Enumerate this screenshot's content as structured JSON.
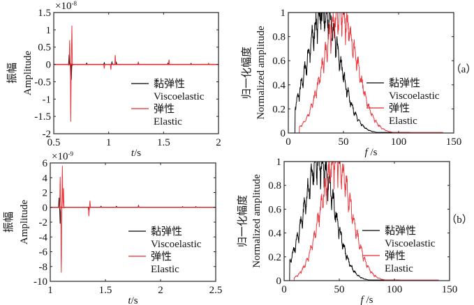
{
  "chart_data": [
    {
      "id": "a-time",
      "type": "line",
      "panel": "(a)",
      "title": "",
      "xlabel": "t/s",
      "ylabel_cn": "振幅",
      "ylabel": "Amplitude",
      "y_exponent_label": "×10",
      "y_exponent": "-8",
      "xlim": [
        0.5,
        2
      ],
      "ylim": [
        -2,
        1.5
      ],
      "xticks": [
        0.5,
        1,
        1.5,
        2
      ],
      "xtick_labels": [
        "0.5",
        "1",
        "1.5",
        "2"
      ],
      "yticks": [
        -2,
        -1.5,
        -1,
        -0.5,
        0,
        0.5,
        1,
        1.5
      ],
      "ytick_labels": [
        "-2",
        "-1.5",
        "-1",
        "-0.5",
        "0",
        "0.5",
        "1",
        "1.5"
      ],
      "legend": {
        "placement": "lower-right",
        "entries": [
          {
            "name_cn": "黏弹性",
            "name": "Viscoelastic",
            "color": "#000000"
          },
          {
            "name_cn": "弹性",
            "name": "Elastic",
            "color": "#e8262b"
          }
        ]
      },
      "series": [
        {
          "name": "Viscoelastic",
          "color": "#000000",
          "events": [
            {
              "t": 0.64,
              "amp": 0.28
            },
            {
              "t": 0.66,
              "amp": -0.45
            },
            {
              "t": 0.8,
              "amp": 0.04
            },
            {
              "t": 0.96,
              "amp": 0.05
            },
            {
              "t": 1.03,
              "amp": 0.07
            },
            {
              "t": 1.07,
              "amp": 0.06
            },
            {
              "t": 1.27,
              "amp": 0.04
            },
            {
              "t": 1.54,
              "amp": 0.04
            },
            {
              "t": 1.75,
              "amp": 0.03
            },
            {
              "t": 1.91,
              "amp": 0.03
            }
          ]
        },
        {
          "name": "Elastic",
          "color": "#e8262b",
          "events": [
            {
              "t": 0.645,
              "amp": 0.7
            },
            {
              "t": 0.655,
              "amp": -1.65
            },
            {
              "t": 0.665,
              "amp": 1.12
            },
            {
              "t": 0.96,
              "amp": -0.12
            },
            {
              "t": 1.02,
              "amp": -0.15
            },
            {
              "t": 1.06,
              "amp": 0.27
            },
            {
              "t": 1.27,
              "amp": 0.08
            },
            {
              "t": 1.55,
              "amp": 0.14
            },
            {
              "t": 1.91,
              "amp": 0.03
            }
          ]
        }
      ]
    },
    {
      "id": "a-spectrum",
      "type": "line",
      "panel": "(a)",
      "xlabel": "f /s",
      "ylabel_cn": "归一化幅度",
      "ylabel": "Normalized amplitude",
      "xlim": [
        0,
        150
      ],
      "ylim": [
        0,
        1
      ],
      "xticks": [
        0,
        50,
        100,
        150
      ],
      "xtick_labels": [
        "0",
        "50",
        "100",
        "150"
      ],
      "yticks": [
        0,
        0.2,
        0.4,
        0.6,
        0.8,
        1
      ],
      "ytick_labels": [
        "0",
        "0.2",
        "0.4",
        "0.6",
        "0.8",
        "1"
      ],
      "legend": {
        "placement": "lower-right",
        "entries": [
          {
            "name_cn": "黏弹性",
            "name": "Viscoelastic",
            "color": "#000000"
          },
          {
            "name_cn": "弹性",
            "name": "Elastic",
            "color": "#e8262b"
          }
        ]
      },
      "series": [
        {
          "name": "Viscoelastic",
          "color": "#000000",
          "peak_f": 32,
          "width": 15,
          "start_f": 6,
          "end_f": 110,
          "max": 1.0,
          "max_at": 30
        },
        {
          "name": "Elastic",
          "color": "#e8262b",
          "peak_f": 47,
          "width": 15,
          "start_f": 10,
          "end_f": 140,
          "max": 1.0,
          "max_at": 50
        }
      ]
    },
    {
      "id": "b-time",
      "type": "line",
      "panel": "(b)",
      "xlabel": "t/s",
      "ylabel_cn": "振幅",
      "ylabel": "Amplitude",
      "y_exponent_label": "×10",
      "y_exponent": "-9",
      "xlim": [
        1,
        2.5
      ],
      "ylim": [
        -10,
        6
      ],
      "xticks": [
        1,
        1.5,
        2,
        2.5
      ],
      "xtick_labels": [
        "1",
        "1.5",
        "2",
        "2.5"
      ],
      "yticks": [
        -10,
        -8,
        -6,
        -4,
        -2,
        0,
        2,
        4,
        6
      ],
      "ytick_labels": [
        "-10",
        "-8",
        "-6",
        "-4",
        "-2",
        "0",
        "2",
        "4",
        "6"
      ],
      "legend": {
        "placement": "lower-right",
        "entries": [
          {
            "name_cn": "黏弹性",
            "name": "Viscoelastic",
            "color": "#000000"
          },
          {
            "name_cn": "弹性",
            "name": "Elastic",
            "color": "#e8262b"
          }
        ]
      },
      "series": [
        {
          "name": "Viscoelastic",
          "color": "#000000",
          "events": [
            {
              "t": 1.08,
              "amp": 1.3
            },
            {
              "t": 1.09,
              "amp": -2.2
            },
            {
              "t": 1.35,
              "amp": -0.4
            },
            {
              "t": 1.46,
              "amp": 0.15
            },
            {
              "t": 1.6,
              "amp": 0.15
            },
            {
              "t": 1.8,
              "amp": 0.25
            },
            {
              "t": 2.2,
              "amp": 0.1
            },
            {
              "t": 2.32,
              "amp": 0.1
            }
          ]
        },
        {
          "name": "Elastic",
          "color": "#e8262b",
          "events": [
            {
              "t": 1.09,
              "amp": 4.1
            },
            {
              "t": 1.1,
              "amp": -8.8
            },
            {
              "t": 1.11,
              "amp": 5.6
            },
            {
              "t": 1.12,
              "amp": 2.6
            },
            {
              "t": 1.35,
              "amp": -1.2
            },
            {
              "t": 1.36,
              "amp": 0.9
            },
            {
              "t": 1.8,
              "amp": 0.2
            }
          ]
        }
      ]
    },
    {
      "id": "b-spectrum",
      "type": "line",
      "panel": "(b)",
      "xlabel": "f /s",
      "ylabel_cn": "归一化幅度",
      "ylabel": "Normalized amplitude",
      "xlim": [
        0,
        150
      ],
      "ylim": [
        0,
        1
      ],
      "xticks": [
        0,
        50,
        100,
        150
      ],
      "xtick_labels": [
        "0",
        "50",
        "100",
        "150"
      ],
      "yticks": [
        0,
        0.2,
        0.4,
        0.6,
        0.8,
        1
      ],
      "ytick_labels": [
        "0",
        "0.2",
        "0.4",
        "0.6",
        "0.8",
        "1"
      ],
      "legend": {
        "placement": "lower-right",
        "entries": [
          {
            "name_cn": "黏弹性",
            "name": "Viscoelastic",
            "color": "#000000"
          },
          {
            "name_cn": "弹性",
            "name": "Elastic",
            "color": "#e8262b"
          }
        ]
      },
      "series": [
        {
          "name": "Viscoelastic",
          "color": "#000000",
          "peak_f": 32,
          "width": 14,
          "start_f": 5,
          "end_f": 105,
          "max": 1.0,
          "max_at": 32
        },
        {
          "name": "Elastic",
          "color": "#e8262b",
          "peak_f": 47,
          "width": 14,
          "start_f": 9,
          "end_f": 140,
          "max": 1.0,
          "max_at": 48
        }
      ]
    }
  ]
}
